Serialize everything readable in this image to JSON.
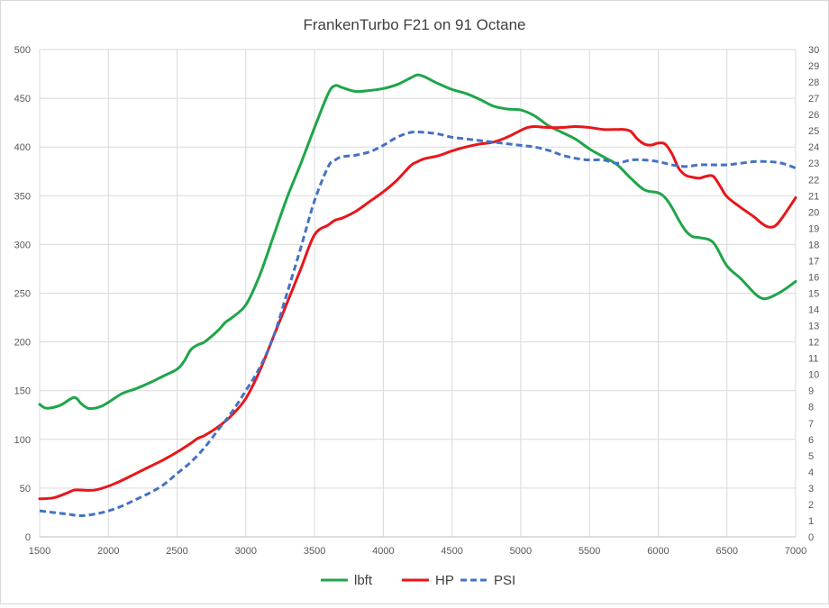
{
  "chart_data": {
    "type": "line",
    "title": "FrankenTurbo F21 on 91 Octane",
    "xlabel": "",
    "ylabel": "",
    "ylabel_right": "",
    "xlim": [
      1500,
      7000
    ],
    "ylim": [
      0,
      500
    ],
    "ylim_right": [
      0,
      30
    ],
    "x_ticks": [
      1500,
      2000,
      2500,
      3000,
      3500,
      4000,
      4500,
      5000,
      5500,
      6000,
      6500,
      7000
    ],
    "y_ticks": [
      0,
      50,
      100,
      150,
      200,
      250,
      300,
      350,
      400,
      450,
      500
    ],
    "y_ticks_right": [
      0,
      1,
      2,
      3,
      4,
      5,
      6,
      7,
      8,
      9,
      10,
      11,
      12,
      13,
      14,
      15,
      16,
      17,
      18,
      19,
      20,
      21,
      22,
      23,
      24,
      25,
      26,
      27,
      28,
      29,
      30
    ],
    "grid": true,
    "legend_position": "bottom",
    "series": [
      {
        "name": "lbft",
        "color": "#1fa54a",
        "axis": "left",
        "dash": "solid",
        "x": [
          1500,
          1550,
          1650,
          1750,
          1800,
          1850,
          1900,
          1950,
          2000,
          2100,
          2200,
          2300,
          2400,
          2500,
          2550,
          2600,
          2650,
          2700,
          2800,
          2850,
          2900,
          3000,
          3100,
          3200,
          3300,
          3400,
          3500,
          3600,
          3650,
          3700,
          3800,
          3900,
          4000,
          4100,
          4200,
          4250,
          4300,
          4400,
          4500,
          4600,
          4700,
          4800,
          4900,
          5000,
          5100,
          5200,
          5300,
          5400,
          5500,
          5600,
          5700,
          5800,
          5900,
          6000,
          6050,
          6100,
          6150,
          6200,
          6250,
          6300,
          6400,
          6500,
          6600,
          6700,
          6750,
          6800,
          6900,
          7000
        ],
        "y": [
          136,
          132,
          135,
          143,
          137,
          132,
          132,
          134,
          138,
          147,
          152,
          158,
          165,
          172,
          180,
          192,
          197,
          200,
          212,
          220,
          225,
          238,
          268,
          308,
          348,
          383,
          420,
          455,
          463,
          461,
          457,
          458,
          460,
          464,
          471,
          474,
          472,
          465,
          459,
          455,
          449,
          442,
          439,
          438,
          432,
          422,
          415,
          408,
          398,
          390,
          382,
          368,
          356,
          353,
          348,
          338,
          325,
          314,
          308,
          307,
          302,
          278,
          265,
          250,
          245,
          245,
          252,
          262
        ]
      },
      {
        "name": "HP",
        "color": "#e8161a",
        "axis": "left",
        "dash": "solid",
        "x": [
          1500,
          1600,
          1700,
          1750,
          1800,
          1900,
          2000,
          2100,
          2200,
          2300,
          2400,
          2500,
          2600,
          2650,
          2700,
          2800,
          2900,
          3000,
          3100,
          3200,
          3300,
          3400,
          3500,
          3600,
          3650,
          3700,
          3800,
          3900,
          4000,
          4100,
          4200,
          4250,
          4300,
          4400,
          4500,
          4600,
          4700,
          4800,
          4900,
          5000,
          5050,
          5100,
          5200,
          5300,
          5400,
          5500,
          5600,
          5700,
          5750,
          5800,
          5850,
          5900,
          5950,
          6000,
          6050,
          6100,
          6150,
          6200,
          6250,
          6300,
          6350,
          6400,
          6450,
          6500,
          6600,
          6700,
          6750,
          6800,
          6850,
          6900,
          7000
        ],
        "y": [
          39,
          40,
          45,
          48,
          48,
          48,
          52,
          58,
          65,
          72,
          79,
          87,
          96,
          101,
          104,
          113,
          125,
          142,
          170,
          205,
          240,
          275,
          310,
          320,
          325,
          327,
          334,
          344,
          354,
          366,
          381,
          385,
          388,
          391,
          396,
          400,
          403,
          405,
          410,
          417,
          420,
          421,
          420,
          420,
          421,
          420,
          418,
          418,
          418,
          416,
          408,
          403,
          402,
          404,
          403,
          393,
          378,
          371,
          369,
          368,
          370,
          370,
          360,
          349,
          338,
          328,
          322,
          318,
          319,
          327,
          348
        ]
      },
      {
        "name": "PSI",
        "color": "#4472c4",
        "axis": "right",
        "dash": "dash",
        "x": [
          1500,
          1600,
          1700,
          1800,
          1900,
          2000,
          2100,
          2200,
          2300,
          2400,
          2500,
          2600,
          2700,
          2800,
          2900,
          3000,
          3100,
          3200,
          3300,
          3400,
          3500,
          3600,
          3650,
          3700,
          3800,
          3900,
          4000,
          4100,
          4200,
          4300,
          4400,
          4500,
          4600,
          4700,
          4800,
          4900,
          5000,
          5100,
          5200,
          5300,
          5400,
          5500,
          5600,
          5700,
          5800,
          5900,
          6000,
          6100,
          6200,
          6300,
          6400,
          6500,
          6600,
          6700,
          6800,
          6900,
          7000
        ],
        "y": [
          1.6,
          1.5,
          1.4,
          1.3,
          1.4,
          1.6,
          1.9,
          2.3,
          2.7,
          3.2,
          3.9,
          4.6,
          5.5,
          6.6,
          7.7,
          9.0,
          10.4,
          12.3,
          15.0,
          17.8,
          20.7,
          22.8,
          23.2,
          23.4,
          23.5,
          23.7,
          24.1,
          24.6,
          24.9,
          24.9,
          24.8,
          24.6,
          24.5,
          24.4,
          24.3,
          24.2,
          24.1,
          24.0,
          23.8,
          23.5,
          23.3,
          23.2,
          23.2,
          23.0,
          23.2,
          23.2,
          23.1,
          22.9,
          22.8,
          22.9,
          22.9,
          22.9,
          23.0,
          23.1,
          23.1,
          23.0,
          22.7
        ]
      }
    ]
  }
}
